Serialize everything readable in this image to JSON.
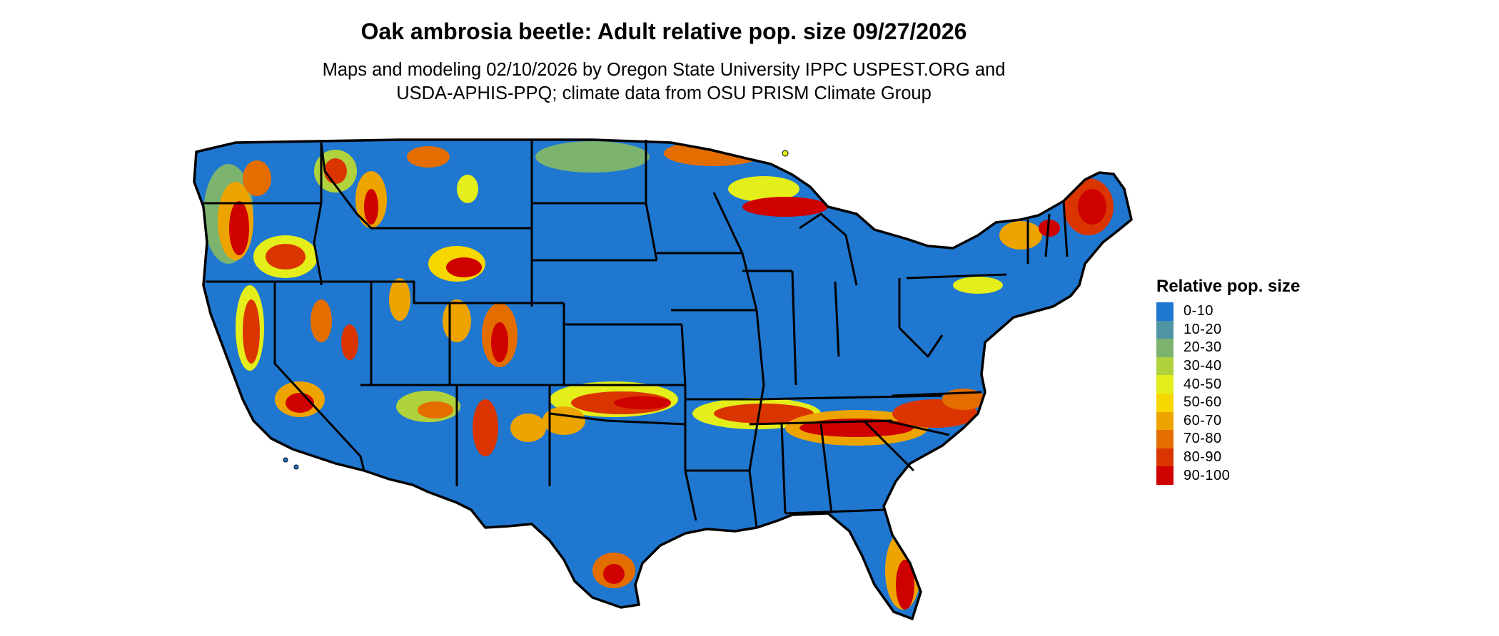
{
  "title": "Oak ambrosia beetle: Adult relative pop. size 09/27/2026",
  "subtitle_lines": [
    "Maps and modeling 02/10/2026 by Oregon State University IPPC USPEST.ORG and",
    "USDA-APHIS-PPQ; climate data from OSU PRISM Climate Group"
  ],
  "map": {
    "region": "Conterminous United States",
    "base_color": "#1f77d0",
    "border_color": "#000000"
  },
  "legend": {
    "title": "Relative pop. size",
    "items": [
      {
        "label": "0-10",
        "color": "#1f77d0"
      },
      {
        "label": "10-20",
        "color": "#4f95a6"
      },
      {
        "label": "20-30",
        "color": "#7cb36f"
      },
      {
        "label": "30-40",
        "color": "#b0d23d"
      },
      {
        "label": "40-50",
        "color": "#e3ee1b"
      },
      {
        "label": "50-60",
        "color": "#f6d700"
      },
      {
        "label": "60-70",
        "color": "#eea400"
      },
      {
        "label": "70-80",
        "color": "#e46d00"
      },
      {
        "label": "80-90",
        "color": "#da3500"
      },
      {
        "label": "90-100",
        "color": "#cf0000"
      }
    ]
  }
}
